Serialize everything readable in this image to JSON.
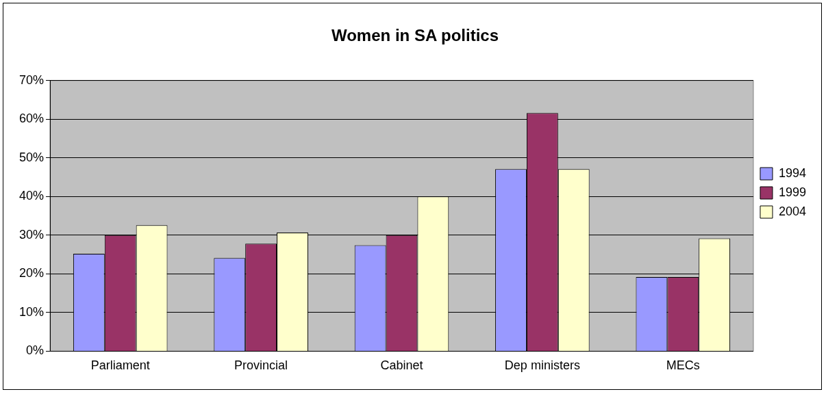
{
  "chart_data": {
    "type": "bar",
    "title": "Women in SA politics",
    "categories": [
      "Parliament",
      "Provincial",
      "Cabinet",
      "Dep ministers",
      "MECs"
    ],
    "series": [
      {
        "name": "1994",
        "color": "#9999ff",
        "values": [
          25.2,
          24.1,
          27.4,
          47.1,
          19.2
        ]
      },
      {
        "name": "1999",
        "color": "#993366",
        "values": [
          30,
          27.8,
          30,
          61.6,
          19.2
        ]
      },
      {
        "name": "2004",
        "color": "#ffffcc",
        "values": [
          32.6,
          30.7,
          40,
          47.1,
          29.2
        ]
      }
    ],
    "ylim": [
      0,
      70
    ],
    "yticks": [
      {
        "value": 0,
        "label": "0%"
      },
      {
        "value": 10,
        "label": "10%"
      },
      {
        "value": 20,
        "label": "20%"
      },
      {
        "value": 30,
        "label": "30%"
      },
      {
        "value": 40,
        "label": "40%"
      },
      {
        "value": 50,
        "label": "50%"
      },
      {
        "value": 60,
        "label": "60%"
      },
      {
        "value": 70,
        "label": "70%"
      }
    ],
    "grid": "y",
    "legend": "right"
  }
}
